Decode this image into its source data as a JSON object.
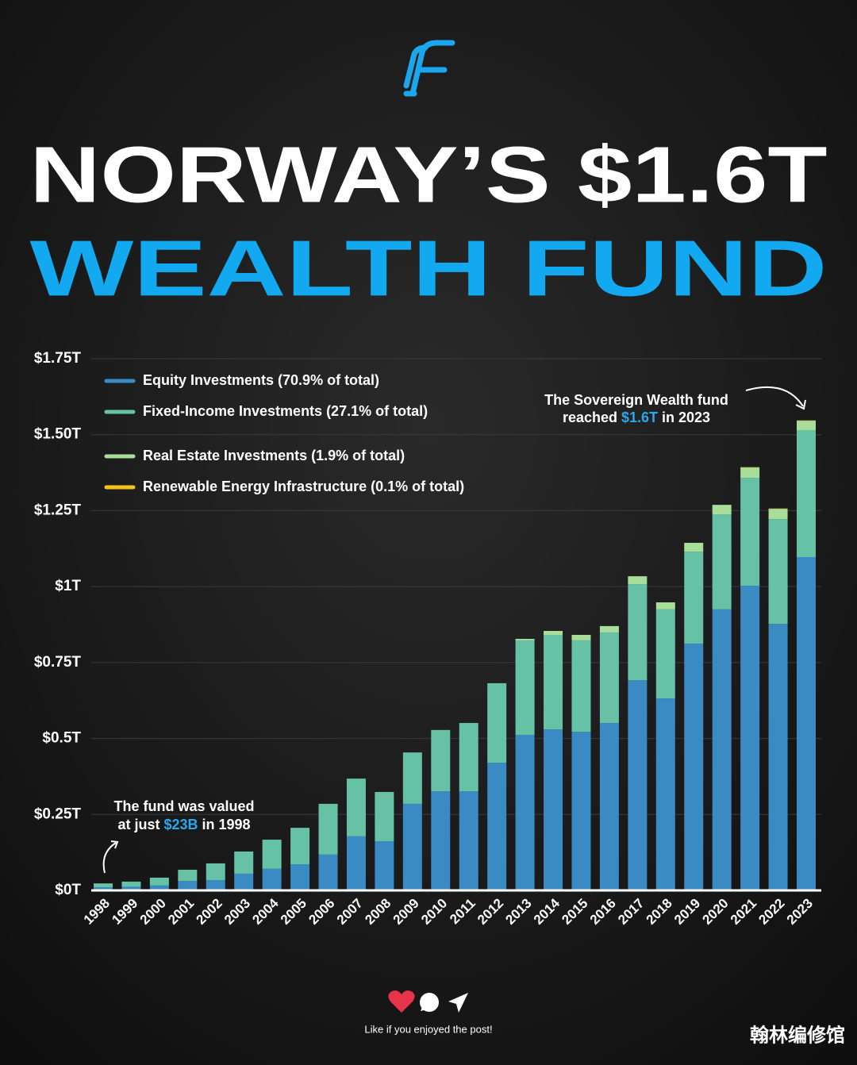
{
  "chart_data": {
    "type": "stacked-bar",
    "title": [
      "NORWAY’S $1.6T",
      "WEALTH FUND"
    ],
    "categories": [
      "1998",
      "1999",
      "2000",
      "2001",
      "2002",
      "2003",
      "2004",
      "2005",
      "2006",
      "2007",
      "2008",
      "2009",
      "2010",
      "2011",
      "2012",
      "2013",
      "2014",
      "2015",
      "2016",
      "2017",
      "2018",
      "2019",
      "2020",
      "2021",
      "2022",
      "2023"
    ],
    "series": [
      {
        "name": "Equity Investments (70.9% of total)",
        "color": "#3a8ac4",
        "values": [
          0.01,
          0.012,
          0.016,
          0.031,
          0.034,
          0.055,
          0.071,
          0.086,
          0.118,
          0.178,
          0.162,
          0.285,
          0.326,
          0.326,
          0.42,
          0.512,
          0.53,
          0.522,
          0.551,
          0.692,
          0.632,
          0.812,
          0.925,
          1.003,
          0.877,
          1.097
        ]
      },
      {
        "name": "Fixed-Income Investments (27.1% of total)",
        "color": "#67c2a5",
        "values": [
          0.013,
          0.017,
          0.026,
          0.037,
          0.055,
          0.073,
          0.096,
          0.12,
          0.167,
          0.19,
          0.162,
          0.169,
          0.202,
          0.225,
          0.262,
          0.311,
          0.311,
          0.301,
          0.298,
          0.316,
          0.293,
          0.303,
          0.313,
          0.355,
          0.345,
          0.418
        ]
      },
      {
        "name": "Real Estate Investments (1.9% of total)",
        "color": "#a9dd9a",
        "values": [
          0,
          0,
          0,
          0,
          0,
          0,
          0,
          0,
          0,
          0,
          0,
          0,
          0,
          0,
          0,
          0.005,
          0.013,
          0.018,
          0.021,
          0.026,
          0.023,
          0.029,
          0.031,
          0.034,
          0.034,
          0.031
        ]
      },
      {
        "name": "Renewable Energy Infrastructure (0.1% of total)",
        "color": "#f2c11d",
        "values": [
          0,
          0,
          0,
          0,
          0,
          0,
          0,
          0,
          0,
          0,
          0,
          0,
          0,
          0,
          0,
          0,
          0,
          0,
          0,
          0,
          0,
          0,
          0,
          0.001,
          0.001,
          0.001
        ]
      }
    ],
    "ylim": [
      0,
      1.75
    ],
    "yticks": [
      {
        "value": 0,
        "label": "$0T"
      },
      {
        "value": 0.25,
        "label": "$0.25T"
      },
      {
        "value": 0.5,
        "label": "$0.5T"
      },
      {
        "value": 0.75,
        "label": "$0.75T"
      },
      {
        "value": 1,
        "label": "$1T"
      },
      {
        "value": 1.25,
        "label": "$1.25T"
      },
      {
        "value": 1.5,
        "label": "$1.50T"
      },
      {
        "value": 1.75,
        "label": "$1.75T"
      }
    ],
    "grid": true,
    "legend": "top-left",
    "annotations": [
      {
        "line1": "The fund was valued",
        "line2": [
          "at just ",
          "$23B",
          " in 1998"
        ]
      },
      {
        "line1": "The Sovereign Wealth fund",
        "line2": [
          "reached ",
          "$1.6T",
          " in 2023"
        ]
      }
    ],
    "footer": "Like if you enjoyed the post!",
    "watermark": "翰林编修馆"
  }
}
